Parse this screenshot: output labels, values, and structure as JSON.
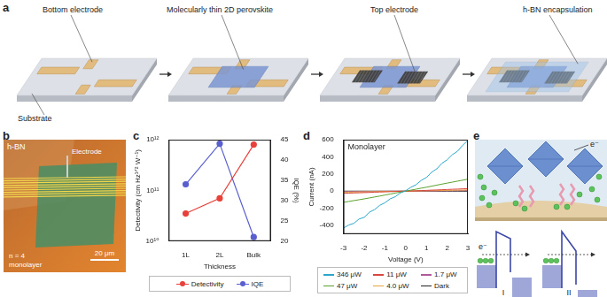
{
  "panels": {
    "a": {
      "letter": "a",
      "bottom_electrode": "Bottom electrode",
      "substrate": "Substrate",
      "perovskite": "Molecularly thin 2D perovskite",
      "top_electrode": "Top electrode",
      "encapsulation": "h-BN encapsulation"
    },
    "b": {
      "letter": "b",
      "hbn": "h-BN",
      "electrode": "Electrode",
      "scale_bar": "20 μm",
      "sample": [
        "n = 4",
        "monolayer"
      ]
    },
    "c": {
      "letter": "c"
    },
    "d": {
      "letter": "d"
    },
    "e": {
      "letter": "e",
      "electron_labels": [
        "e⁻",
        "e⁻"
      ],
      "band_labels": [
        "I",
        "II"
      ]
    }
  },
  "chart_data": [
    {
      "type": "line",
      "x_label": "Thickness",
      "y_label": "Detectivity (cm Hz¹ᐟ² W⁻¹)",
      "y2_label": "IQE (%)",
      "categories": [
        "1L",
        "2L",
        "Bulk"
      ],
      "series": [
        {
          "name": "Detectivity",
          "color": "#e8413c",
          "marker": "circle",
          "values": [
            35000000000,
            70000000000,
            800000000000
          ]
        },
        {
          "name": "IQE",
          "color": "#5a5fcf",
          "marker": "circle",
          "axis": "y2",
          "values": [
            34,
            44,
            21
          ]
        }
      ],
      "log": "y",
      "ylim": [
        10000000000,
        1000000000000
      ],
      "yticks": [
        {
          "value": 10000000000,
          "label": "10¹⁰"
        },
        {
          "value": 100000000000,
          "label": "10¹¹"
        },
        {
          "value": 1000000000000,
          "label": "10¹²"
        }
      ],
      "y2lim": [
        20,
        45
      ],
      "y2ticks": [
        20,
        25,
        30,
        35,
        40,
        45
      ],
      "legend": "bottom",
      "grid": false
    },
    {
      "type": "line",
      "annotation": "Monolayer",
      "x_label": "Voltage (V)",
      "y_label": "Current (nA)",
      "x": [
        -3,
        -2.75,
        -2.5,
        -2.25,
        -2,
        -1.75,
        -1.5,
        -1.25,
        -1,
        -0.75,
        -0.5,
        -0.25,
        0,
        0.25,
        0.5,
        0.75,
        1,
        1.25,
        1.5,
        1.75,
        2,
        2.25,
        2.5,
        2.75,
        3
      ],
      "series": [
        {
          "name": "346 μW",
          "color": "#2aa7c9",
          "values": [
            -430,
            -395,
            -375,
            -325,
            -305,
            -245,
            -215,
            -165,
            -135,
            -90,
            -65,
            -20,
            5,
            45,
            75,
            125,
            160,
            220,
            260,
            325,
            365,
            425,
            465,
            535,
            590
          ]
        },
        {
          "name": "47 μW",
          "color": "#5aa02c",
          "values": [
            -130,
            -120,
            -110,
            -100,
            -90,
            -79,
            -68,
            -57,
            -45,
            -34,
            -22,
            -11,
            0,
            12,
            23,
            35,
            46,
            58,
            70,
            82,
            94,
            105,
            117,
            128,
            140
          ]
        },
        {
          "name": "11 μW",
          "color": "#d9473f",
          "values": [
            -25,
            -23,
            -21,
            -19,
            -17,
            -15,
            -12,
            -10,
            -8,
            -6,
            -4,
            -2,
            0,
            2,
            4,
            7,
            9,
            12,
            14,
            17,
            19,
            22,
            24,
            27,
            30
          ]
        },
        {
          "name": "4.0 μW",
          "color": "#e8a33d",
          "values": [
            -12,
            -11,
            -10,
            -9,
            -8,
            -7,
            -6,
            -5,
            -4,
            -3,
            -2,
            -1,
            0,
            1,
            2,
            3,
            4,
            5,
            6,
            8,
            9,
            10,
            12,
            13,
            15
          ]
        },
        {
          "name": "1.7 μW",
          "color": "#b05a9a",
          "values": [
            -6,
            -5,
            -5,
            -4,
            -4,
            -3,
            -3,
            -2,
            -2,
            -1,
            -1,
            0,
            0,
            0,
            1,
            1,
            2,
            2,
            3,
            4,
            4,
            5,
            6,
            7,
            8
          ]
        },
        {
          "name": "Dark",
          "color": "#222222",
          "values": [
            0,
            0,
            0,
            0,
            0,
            0,
            0,
            0,
            0,
            0,
            0,
            0,
            0,
            0,
            0,
            0,
            0,
            0,
            0,
            0,
            0,
            0,
            0,
            0,
            0
          ]
        }
      ],
      "marker": "none",
      "xlim": [
        -3,
        3
      ],
      "xticks": [
        -3,
        -2,
        -1,
        0,
        1,
        2,
        3
      ],
      "ylim": [
        -500,
        600
      ],
      "yticks": [
        -400,
        -200,
        0,
        200,
        400,
        600
      ],
      "legend": "bottom",
      "grid": false
    }
  ]
}
